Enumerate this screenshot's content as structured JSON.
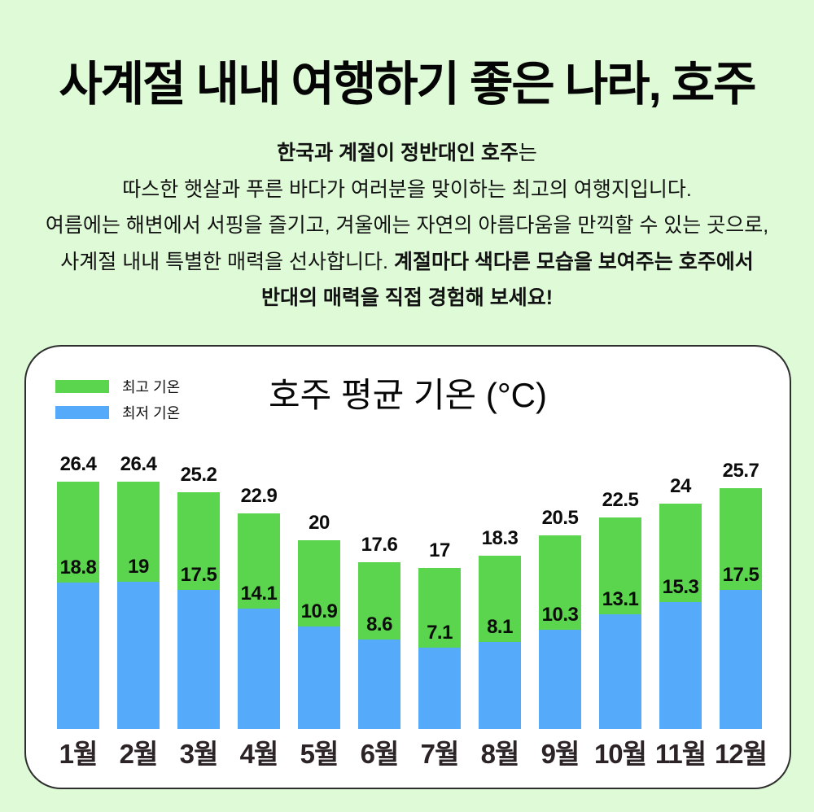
{
  "page": {
    "bg_color": "#DEFAD7",
    "title": "사계절 내내 여행하기 좋은 나라, 호주",
    "intro": {
      "line1_bold": "한국과 계절이 정반대인 호주",
      "line1_regular": "는",
      "line2": "따스한 햇살과 푸른 바다가 여러분을 맞이하는 최고의 여행지입니다.",
      "line3": "여름에는 해변에서 서핑을 즐기고, 겨울에는 자연의 아름다움을 만끽할 수 있는 곳으로,",
      "line4_regular": "사계절 내내 특별한 매력을 선사합니다. ",
      "line4_bold": "계절마다 색다른 모습을 보여주는 호주에서",
      "line5_bold": "반대의 매력을 직접 경험해 보세요!"
    }
  },
  "card": {
    "bg_color": "#FFFFFF",
    "border_color": "#2E2E2E"
  },
  "chart_data": {
    "type": "bar",
    "subtype": "overlaid-vertical-bars",
    "title": "호주 평균 기온 (°C)",
    "categories": [
      "1월",
      "2월",
      "3월",
      "4월",
      "5월",
      "6월",
      "7월",
      "8월",
      "9월",
      "10월",
      "11월",
      "12월"
    ],
    "series": [
      {
        "name": "최고 기온",
        "color": "#5BD54D",
        "values": [
          26.4,
          26.4,
          25.2,
          22.9,
          20,
          17.6,
          17,
          18.3,
          20.5,
          22.5,
          24,
          25.7
        ]
      },
      {
        "name": "최저 기온",
        "color": "#55AAFA",
        "values": [
          18.8,
          19,
          17.5,
          14.1,
          10.9,
          8.6,
          7.1,
          8.1,
          10.3,
          13.1,
          15.3,
          17.5
        ]
      }
    ],
    "legend_position": "top-left",
    "grid": false,
    "axes_visible": false,
    "value_labels": true,
    "xlabel": "",
    "ylabel": "",
    "ylim": [
      0,
      28
    ]
  }
}
